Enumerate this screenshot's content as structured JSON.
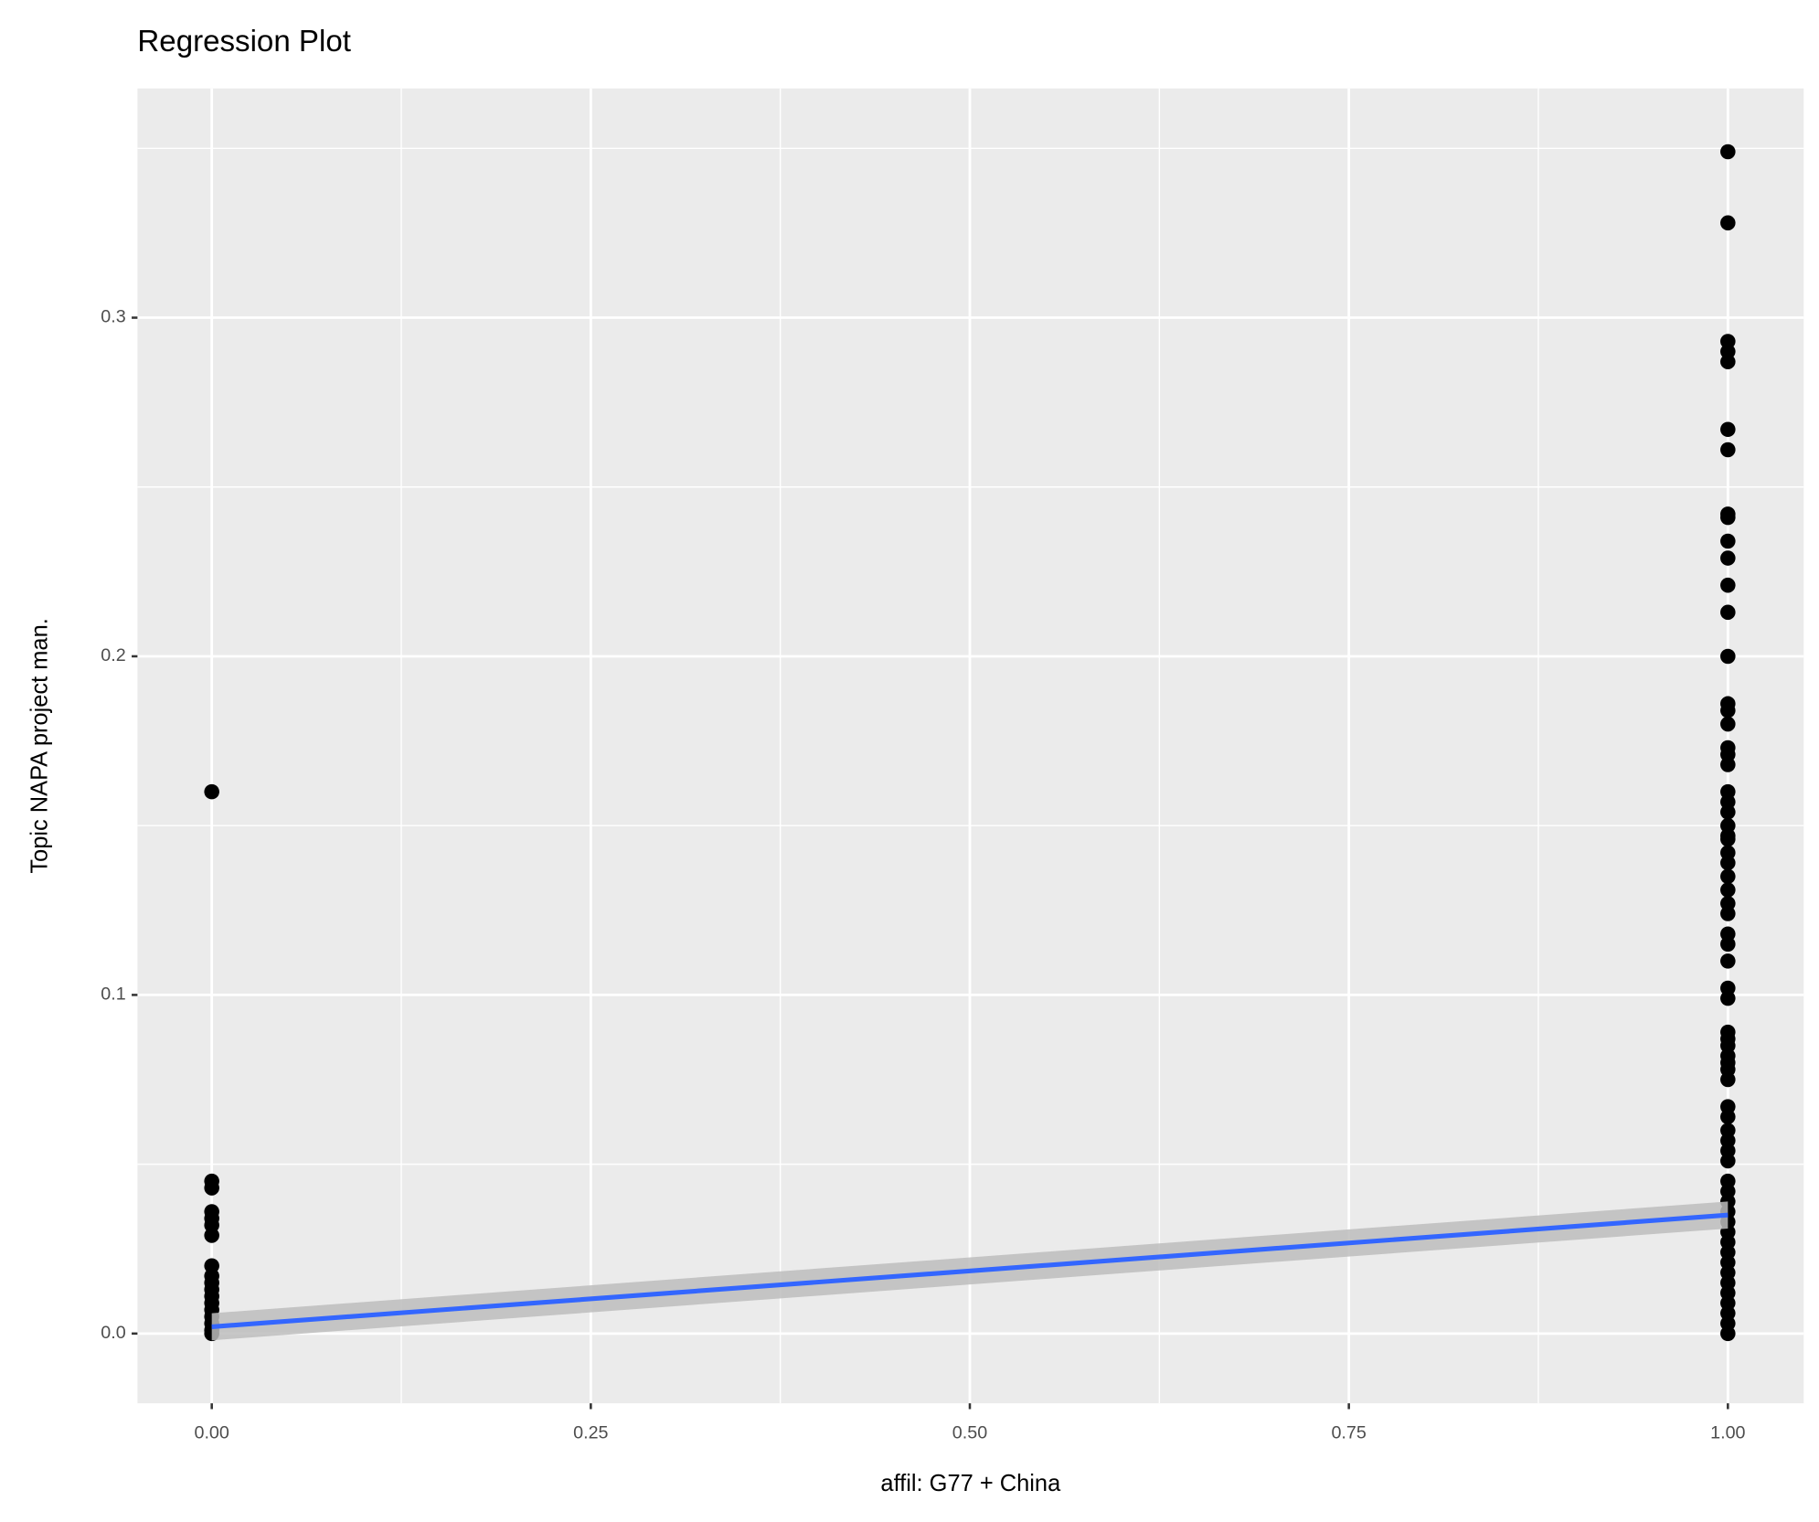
{
  "chart_data": {
    "type": "scatter",
    "title": "Regression Plot",
    "x_label": "affil: G77 + China",
    "y_label": "Topic NAPA project man.",
    "x": [
      0,
      0,
      0,
      0,
      0,
      0,
      0,
      0,
      0,
      0,
      0,
      0,
      0,
      0,
      0,
      0,
      0,
      0,
      1,
      1,
      1,
      1,
      1,
      1,
      1,
      1,
      1,
      1,
      1,
      1,
      1,
      1,
      1,
      1,
      1,
      1,
      1,
      1,
      1,
      1,
      1,
      1,
      1,
      1,
      1,
      1,
      1,
      1,
      1,
      1,
      1,
      1,
      1,
      1,
      1,
      1,
      1,
      1,
      1,
      1,
      1,
      1,
      1,
      1,
      1,
      1,
      1,
      1,
      1,
      1,
      1,
      1,
      1,
      1,
      1,
      1,
      1,
      1,
      1,
      1,
      1,
      1,
      1,
      1
    ],
    "values": [
      0.16,
      0.045,
      0.043,
      0.036,
      0.034,
      0.032,
      0.029,
      0.02,
      0.017,
      0.015,
      0.013,
      0.011,
      0.009,
      0.007,
      0.005,
      0.003,
      0.001,
      0.0,
      0.349,
      0.328,
      0.293,
      0.29,
      0.287,
      0.267,
      0.261,
      0.242,
      0.241,
      0.234,
      0.229,
      0.221,
      0.213,
      0.2,
      0.186,
      0.184,
      0.18,
      0.173,
      0.171,
      0.168,
      0.16,
      0.157,
      0.154,
      0.15,
      0.147,
      0.146,
      0.142,
      0.139,
      0.135,
      0.131,
      0.127,
      0.124,
      0.118,
      0.115,
      0.11,
      0.102,
      0.099,
      0.089,
      0.087,
      0.085,
      0.082,
      0.08,
      0.078,
      0.075,
      0.067,
      0.064,
      0.06,
      0.057,
      0.054,
      0.051,
      0.045,
      0.042,
      0.039,
      0.036,
      0.033,
      0.03,
      0.027,
      0.024,
      0.021,
      0.018,
      0.015,
      0.012,
      0.009,
      0.006,
      0.003,
      0.0
    ],
    "color": "#000000",
    "regression": {
      "x": [
        0,
        1
      ],
      "values": [
        0.002,
        0.035
      ],
      "lower": [
        -0.002,
        0.031
      ],
      "upper": [
        0.006,
        0.039
      ],
      "color": "#3366ff",
      "band_color": "#bdbdbd"
    },
    "xlim": [
      -0.049,
      1.05
    ],
    "ylim": [
      -0.0206,
      0.3677
    ],
    "xticks": [
      {
        "value": 0,
        "label": "0.00"
      },
      0.25,
      {
        "value": 0.5,
        "label": "0.50"
      },
      0.75,
      {
        "value": 1,
        "label": "1.00"
      }
    ],
    "yticks": [
      {
        "value": 0,
        "label": "0.0"
      },
      0.1,
      0.2,
      0.3
    ],
    "grid": true
  }
}
